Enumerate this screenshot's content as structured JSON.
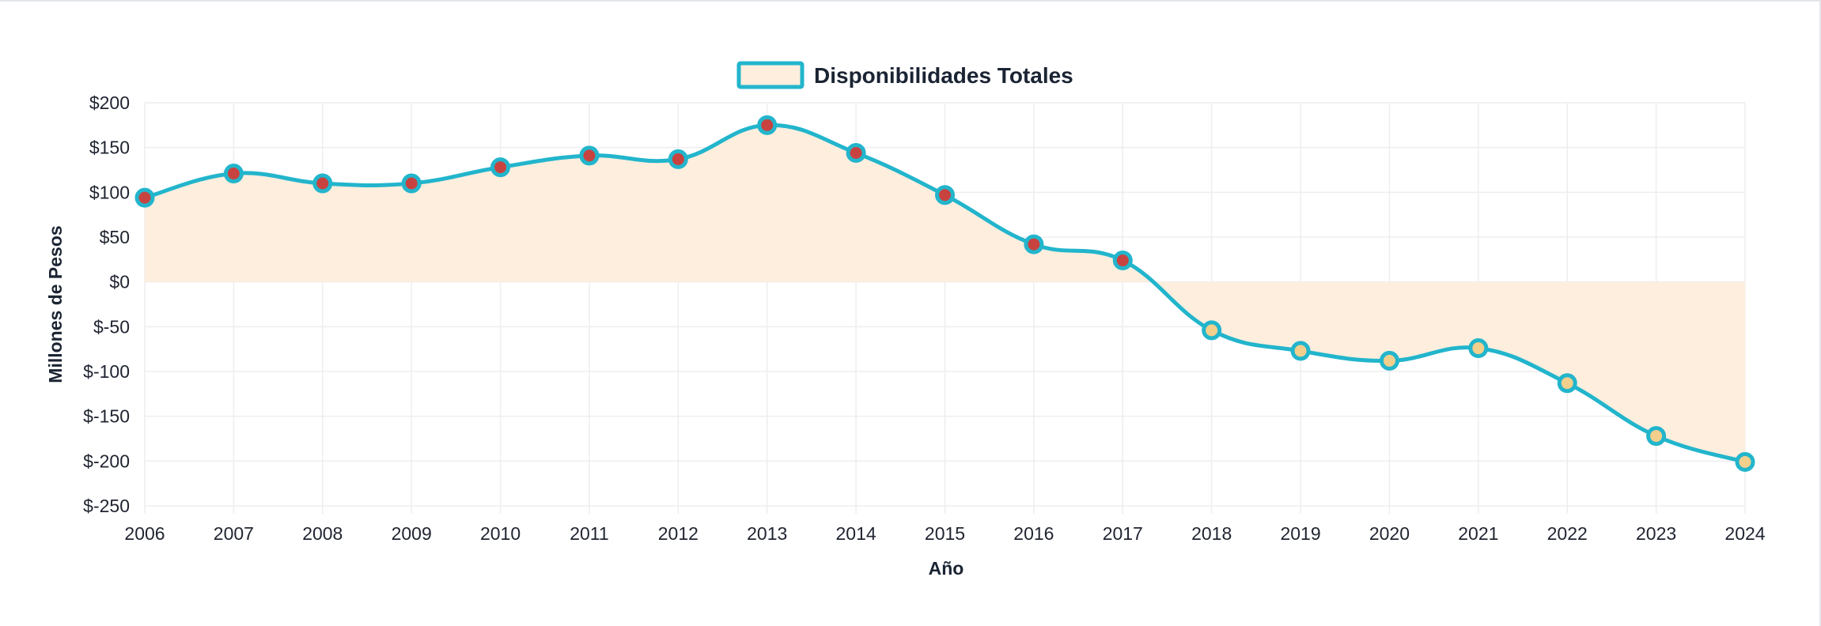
{
  "chart_data": {
    "type": "line",
    "legend_position": "top-center",
    "legend": [
      "Disponibilidades Totales"
    ],
    "xlabel": "Año",
    "ylabel": "Millones de Pesos",
    "ylim": [
      -250,
      200
    ],
    "y_ticks": [
      "$200",
      "$150",
      "$100",
      "$50",
      "$0",
      "$-50",
      "$-100",
      "$-150",
      "$-200",
      "$-250"
    ],
    "y_tick_values": [
      200,
      150,
      100,
      50,
      0,
      -50,
      -100,
      -150,
      -200,
      -250
    ],
    "grid": true,
    "fill_to_zero": true,
    "categories": [
      "2006",
      "2007",
      "2008",
      "2009",
      "2010",
      "2011",
      "2012",
      "2013",
      "2014",
      "2015",
      "2016",
      "2017",
      "2018",
      "2019",
      "2020",
      "2021",
      "2022",
      "2023",
      "2024"
    ],
    "series": [
      {
        "name": "Disponibilidades Totales",
        "values": [
          94,
          121,
          110,
          110,
          128,
          141,
          137,
          175,
          144,
          97,
          42,
          24,
          -54,
          -77,
          -88,
          -74,
          -113,
          -172,
          -201
        ]
      }
    ],
    "colors": {
      "line": "#22b5cc",
      "fill": "#fdeede",
      "point_positive": "#c8433f",
      "point_negative": "#f3cf8c",
      "grid": "#eeeeee",
      "text": "#1b2433"
    }
  }
}
